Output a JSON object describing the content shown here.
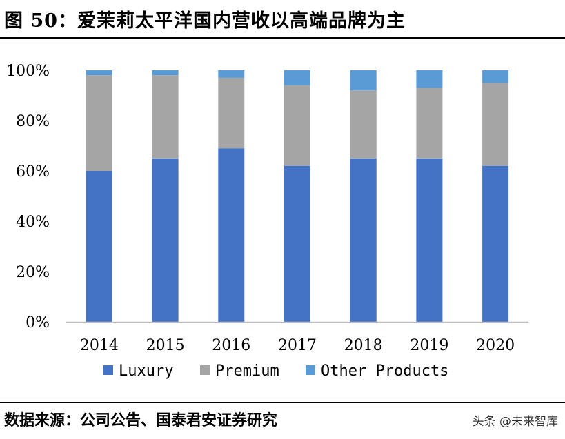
{
  "title": "图 50：爱茉莉太平洋国内营收以高端品牌为主",
  "source": "数据来源：公司公告、国泰君安证券研究",
  "watermark": "头条 @未来智库",
  "chart_data": {
    "type": "bar",
    "stacked": true,
    "categories": [
      "2014",
      "2015",
      "2016",
      "2017",
      "2018",
      "2019",
      "2020"
    ],
    "series": [
      {
        "name": "Luxury",
        "color": "#4472C4",
        "values": [
          60,
          65,
          69,
          62,
          65,
          65,
          62
        ]
      },
      {
        "name": "Premium",
        "color": "#A5A5A5",
        "values": [
          38,
          33,
          28,
          32,
          27,
          28,
          33
        ]
      },
      {
        "name": "Other Products",
        "color": "#5B9BD5",
        "values": [
          2,
          2,
          3,
          6,
          8,
          7,
          5
        ]
      }
    ],
    "yticks": [
      "0%",
      "20%",
      "40%",
      "60%",
      "80%",
      "100%"
    ],
    "ylim": [
      0,
      100
    ],
    "legend_position": "bottom",
    "grid": false
  }
}
